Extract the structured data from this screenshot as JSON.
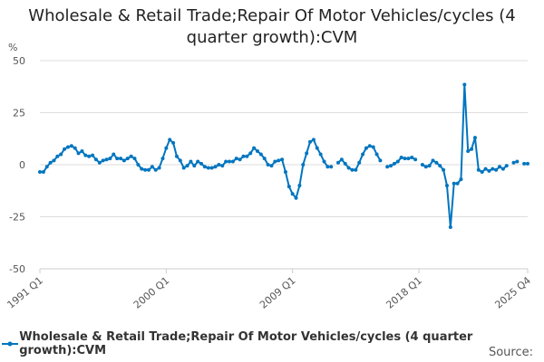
{
  "chart_data": {
    "type": "line",
    "title": "Wholesale & Retail Trade;Repair Of Motor Vehicles/cycles (4 quarter growth):CVM",
    "ylabel": "%",
    "ylim": [
      -50,
      50
    ],
    "yticks": [
      50,
      25,
      0,
      -25,
      -50
    ],
    "x_start": "1991 Q1",
    "x_end": "2025 Q4",
    "xticks": [
      "1991 Q1",
      "2000 Q1",
      "2009 Q1",
      "2018 Q1",
      "2025 Q4"
    ],
    "grid": true,
    "legend_position": "bottom",
    "series": [
      {
        "name": "Wholesale & Retail Trade;Repair Of Motor Vehicles/cycles (4 quarter growth):CVM",
        "color": "#0075bf",
        "values": [
          -3.5,
          -3.5,
          -1,
          1,
          2,
          4,
          5,
          7.5,
          8.5,
          9,
          8,
          5.5,
          6.5,
          4.5,
          4,
          4.5,
          2.5,
          1,
          2,
          2.5,
          3,
          5,
          3,
          3,
          2,
          3,
          4,
          3,
          0,
          -2,
          -2.5,
          -2.5,
          -1,
          -2.5,
          -1.5,
          3,
          8,
          12,
          10.5,
          4,
          2,
          -1.5,
          -0.5,
          1.5,
          -0.5,
          1.5,
          0.5,
          -1,
          -1.5,
          -1.5,
          -1,
          0,
          -0.5,
          1.5,
          1.5,
          1.5,
          3,
          2.5,
          4,
          4,
          5.5,
          8,
          6.5,
          5,
          3,
          0,
          -0.5,
          1.5,
          2,
          2.5,
          -3.5,
          -10.5,
          -14,
          -16,
          -10,
          0,
          5.5,
          11,
          12,
          8,
          5,
          1.5,
          -1,
          -1,
          null,
          1,
          2.5,
          0.5,
          -1.5,
          -2.5,
          -2.5,
          1,
          5,
          8,
          9,
          8.5,
          5,
          2,
          null,
          -1,
          -0.5,
          0.5,
          1.5,
          3.5,
          3,
          3,
          3.5,
          2.5,
          null,
          0,
          -1,
          -0.5,
          2,
          1,
          -0.5,
          -2.5,
          -10,
          -30,
          -9,
          -9,
          -7,
          38.5,
          6.5,
          7.5,
          13,
          -2.5,
          -3.5,
          -2,
          -3,
          -2,
          -2.5,
          -1,
          -2,
          -0.5,
          null,
          1,
          1.5,
          null,
          0.5,
          0.5
        ]
      }
    ]
  },
  "source_label": "Source:"
}
